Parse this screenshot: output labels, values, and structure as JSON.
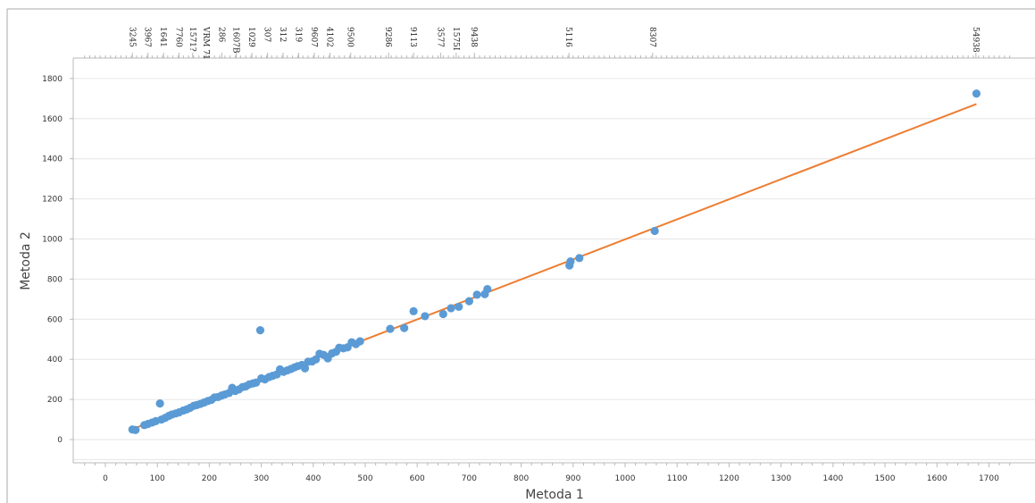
{
  "chart_data": {
    "type": "scatter",
    "title": "",
    "xlabel": "Metoda 1",
    "ylabel": "Metoda 2",
    "xlim": [
      -50,
      1750
    ],
    "ylim": [
      -100,
      1860
    ],
    "x_ticks": [
      0,
      100,
      200,
      300,
      400,
      500,
      600,
      700,
      800,
      900,
      1000,
      1100,
      1200,
      1300,
      1400,
      1500,
      1600,
      1700
    ],
    "y_ticks": [
      0,
      200,
      400,
      600,
      800,
      1000,
      1200,
      1400,
      1600,
      1800
    ],
    "grid": "horizontal",
    "colors": {
      "points": "#5b9bd5",
      "fit_line": "#ed7d31"
    },
    "series": [
      {
        "values": [
          {
            "x": 52,
            "y": 50
          },
          {
            "x": 58,
            "y": 48
          },
          {
            "x": 75,
            "y": 72
          },
          {
            "x": 82,
            "y": 78
          },
          {
            "x": 90,
            "y": 85
          },
          {
            "x": 97,
            "y": 92
          },
          {
            "x": 105,
            "y": 180
          },
          {
            "x": 108,
            "y": 100
          },
          {
            "x": 115,
            "y": 108
          },
          {
            "x": 122,
            "y": 118
          },
          {
            "x": 128,
            "y": 125
          },
          {
            "x": 135,
            "y": 130
          },
          {
            "x": 142,
            "y": 136
          },
          {
            "x": 150,
            "y": 145
          },
          {
            "x": 156,
            "y": 150
          },
          {
            "x": 163,
            "y": 158
          },
          {
            "x": 170,
            "y": 168
          },
          {
            "x": 176,
            "y": 172
          },
          {
            "x": 183,
            "y": 178
          },
          {
            "x": 190,
            "y": 185
          },
          {
            "x": 197,
            "y": 192
          },
          {
            "x": 204,
            "y": 198
          },
          {
            "x": 210,
            "y": 210
          },
          {
            "x": 217,
            "y": 212
          },
          {
            "x": 224,
            "y": 220
          },
          {
            "x": 230,
            "y": 225
          },
          {
            "x": 238,
            "y": 232
          },
          {
            "x": 244,
            "y": 258
          },
          {
            "x": 250,
            "y": 242
          },
          {
            "x": 257,
            "y": 250
          },
          {
            "x": 264,
            "y": 262
          },
          {
            "x": 270,
            "y": 265
          },
          {
            "x": 277,
            "y": 275
          },
          {
            "x": 284,
            "y": 280
          },
          {
            "x": 290,
            "y": 284
          },
          {
            "x": 298,
            "y": 545
          },
          {
            "x": 300,
            "y": 305
          },
          {
            "x": 307,
            "y": 300
          },
          {
            "x": 315,
            "y": 312
          },
          {
            "x": 322,
            "y": 318
          },
          {
            "x": 330,
            "y": 325
          },
          {
            "x": 336,
            "y": 350
          },
          {
            "x": 343,
            "y": 338
          },
          {
            "x": 350,
            "y": 345
          },
          {
            "x": 357,
            "y": 352
          },
          {
            "x": 364,
            "y": 360
          },
          {
            "x": 370,
            "y": 366
          },
          {
            "x": 378,
            "y": 372
          },
          {
            "x": 384,
            "y": 355
          },
          {
            "x": 390,
            "y": 388
          },
          {
            "x": 398,
            "y": 390
          },
          {
            "x": 405,
            "y": 400
          },
          {
            "x": 412,
            "y": 428
          },
          {
            "x": 420,
            "y": 422
          },
          {
            "x": 428,
            "y": 405
          },
          {
            "x": 436,
            "y": 430
          },
          {
            "x": 444,
            "y": 438
          },
          {
            "x": 450,
            "y": 458
          },
          {
            "x": 458,
            "y": 455
          },
          {
            "x": 466,
            "y": 460
          },
          {
            "x": 474,
            "y": 485
          },
          {
            "x": 482,
            "y": 476
          },
          {
            "x": 490,
            "y": 490
          },
          {
            "x": 548,
            "y": 552
          },
          {
            "x": 575,
            "y": 556
          },
          {
            "x": 593,
            "y": 640
          },
          {
            "x": 615,
            "y": 615
          },
          {
            "x": 650,
            "y": 626
          },
          {
            "x": 665,
            "y": 655
          },
          {
            "x": 680,
            "y": 662
          },
          {
            "x": 700,
            "y": 690
          },
          {
            "x": 715,
            "y": 722
          },
          {
            "x": 730,
            "y": 725
          },
          {
            "x": 735,
            "y": 750
          },
          {
            "x": 893,
            "y": 868
          },
          {
            "x": 895,
            "y": 888
          },
          {
            "x": 912,
            "y": 905
          },
          {
            "x": 1057,
            "y": 1040
          },
          {
            "x": 1676,
            "y": 1725
          }
        ]
      }
    ],
    "fit_line": {
      "x1": 50,
      "y1": 50,
      "x2": 1676,
      "y2": 1673
    },
    "top_labels": [
      {
        "x": 52,
        "text": "3245"
      },
      {
        "x": 82,
        "text": "3967"
      },
      {
        "x": 112,
        "text": "1641"
      },
      {
        "x": 142,
        "text": "7760"
      },
      {
        "x": 168,
        "text": "1571?"
      },
      {
        "x": 194,
        "text": "VRM 71"
      },
      {
        "x": 224,
        "text": "286"
      },
      {
        "x": 252,
        "text": "1607B"
      },
      {
        "x": 282,
        "text": "1029"
      },
      {
        "x": 312,
        "text": "307"
      },
      {
        "x": 342,
        "text": "312"
      },
      {
        "x": 372,
        "text": "319"
      },
      {
        "x": 402,
        "text": "9607"
      },
      {
        "x": 432,
        "text": "4102"
      },
      {
        "x": 472,
        "text": "9500"
      },
      {
        "x": 545,
        "text": "9286"
      },
      {
        "x": 593,
        "text": "9113"
      },
      {
        "x": 645,
        "text": "3577"
      },
      {
        "x": 675,
        "text": "1575I"
      },
      {
        "x": 710,
        "text": "9438"
      },
      {
        "x": 892,
        "text": "5116"
      },
      {
        "x": 1053,
        "text": "8307"
      },
      {
        "x": 1675,
        "text": "54938"
      }
    ]
  }
}
